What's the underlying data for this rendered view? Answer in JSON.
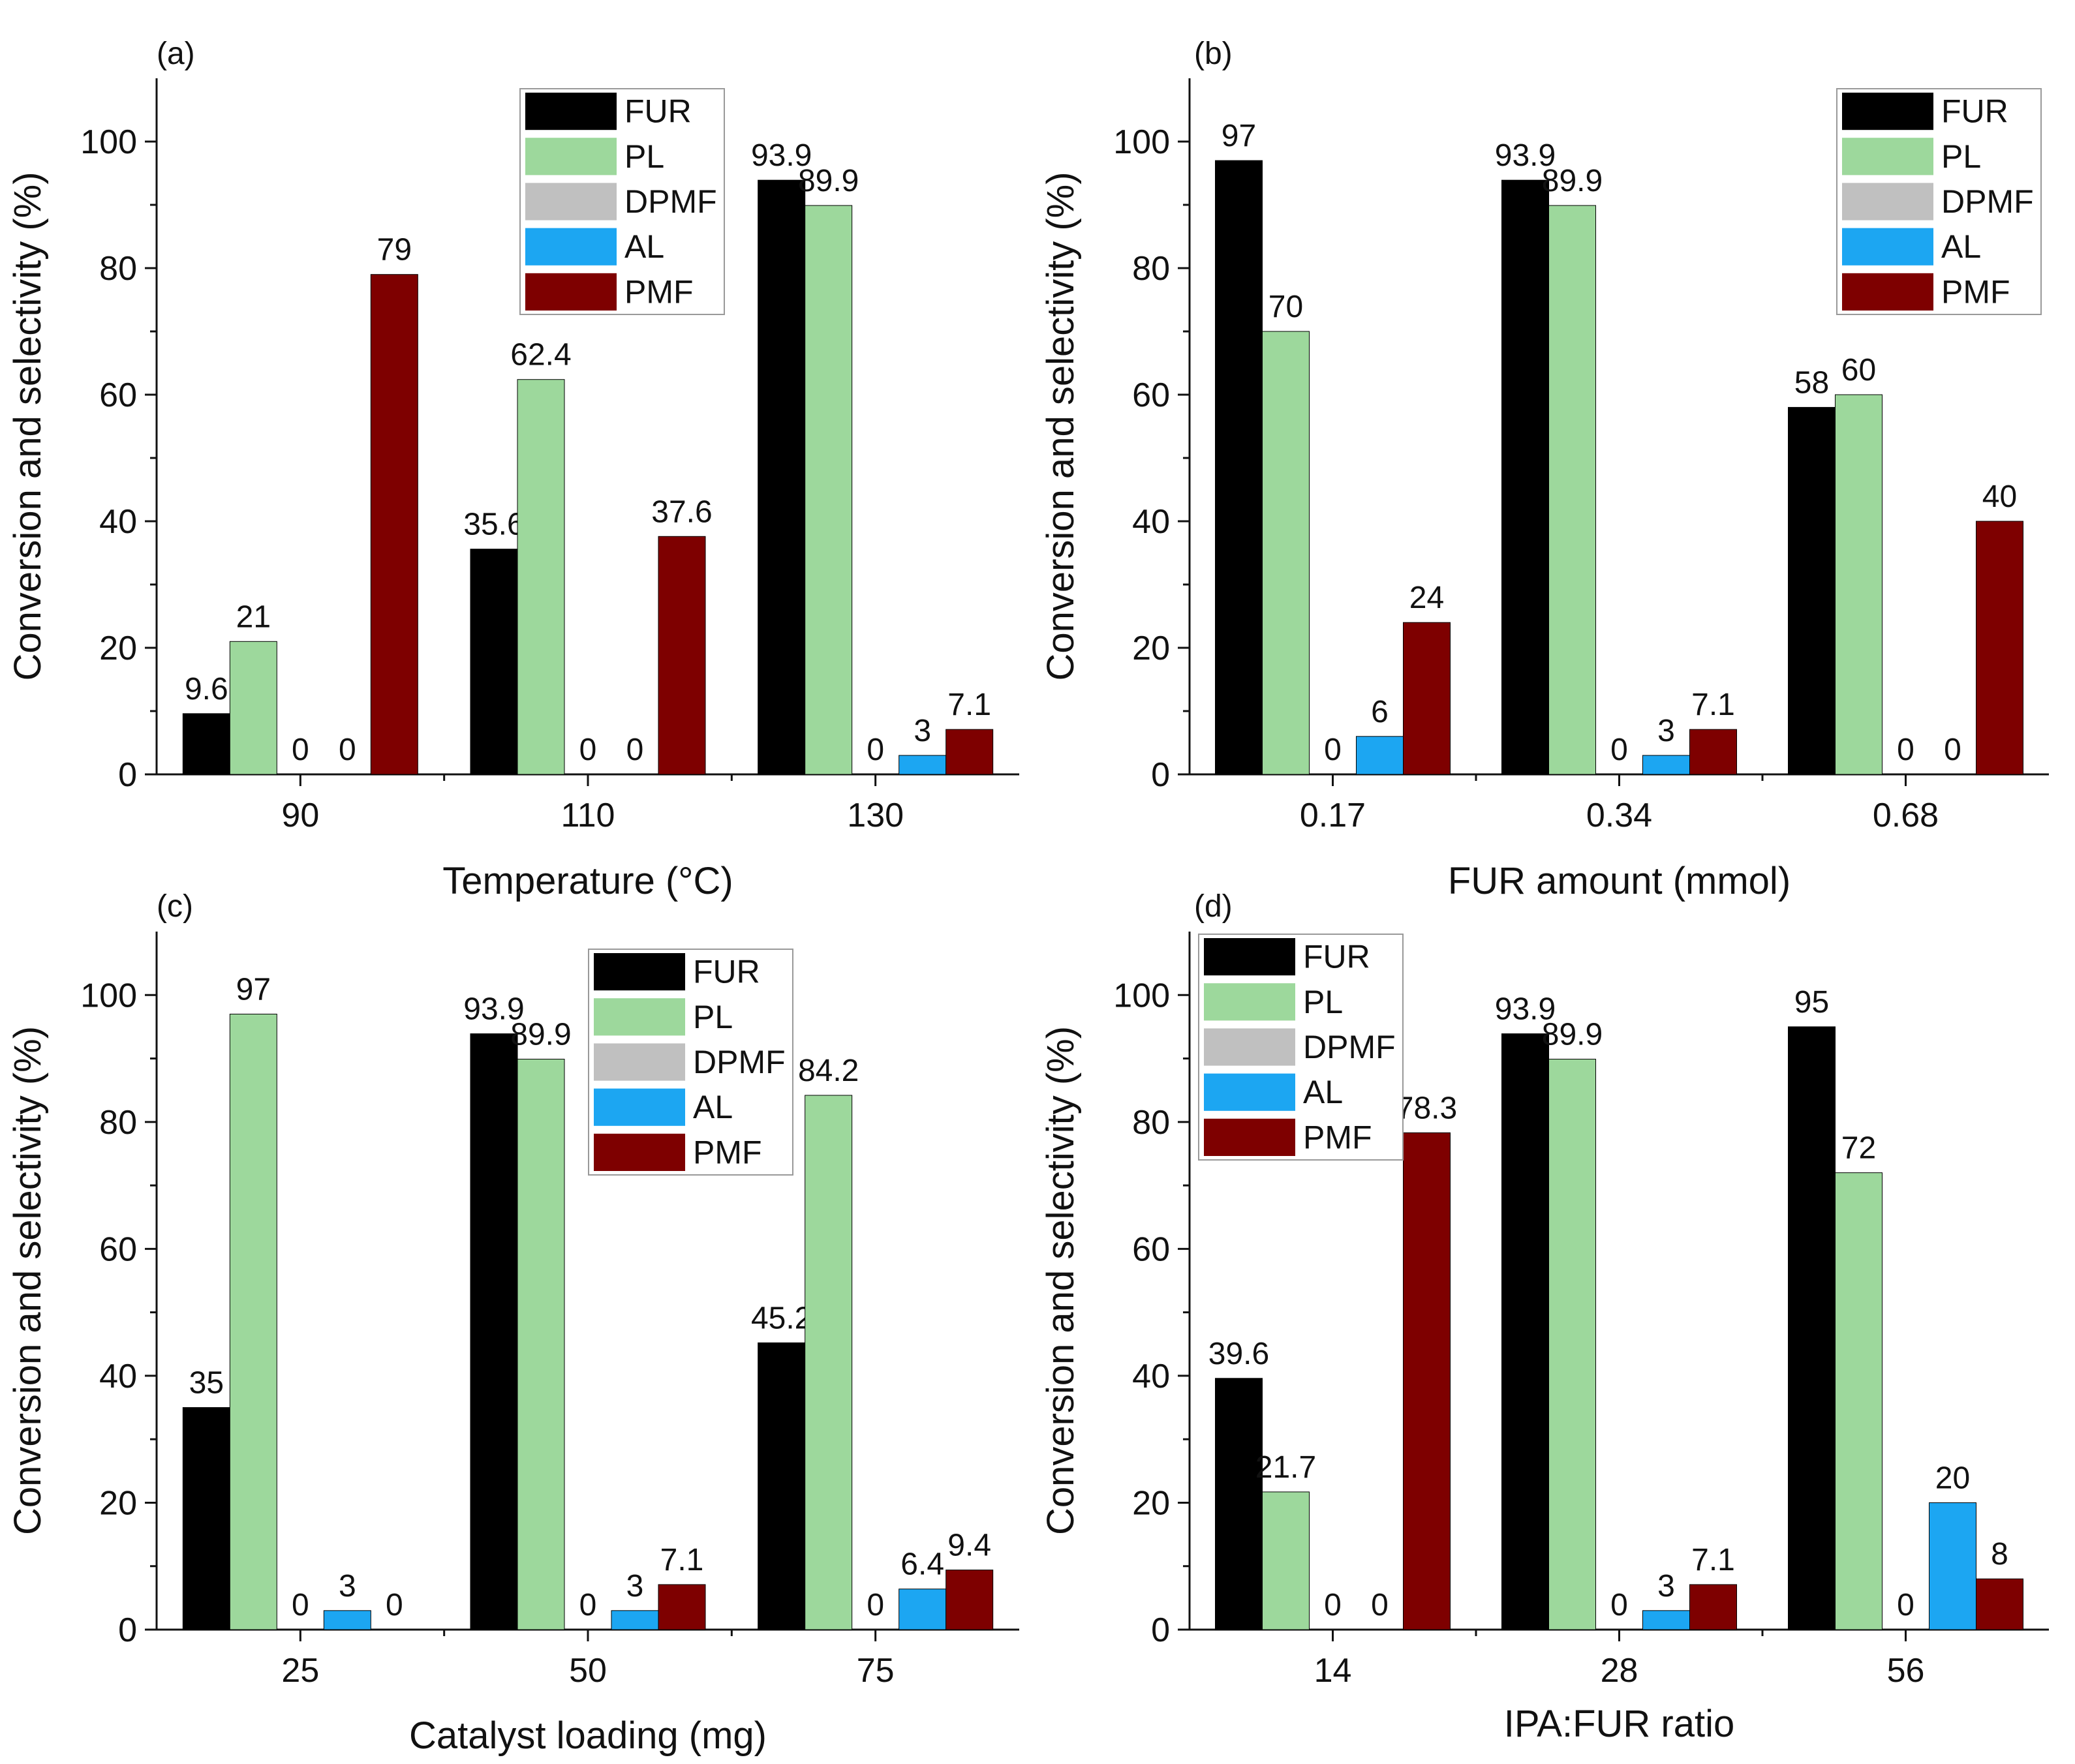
{
  "colors": {
    "FUR": "#000000",
    "PL": "#9dd89c",
    "DPMF": "#c0c0c0",
    "AL": "#1ca6f2",
    "PMF": "#7e0000"
  },
  "chart_data": [
    {
      "type": "bar",
      "panel": "(a)",
      "xlabel": "Temperature (°C)",
      "ylabel": "Conversion and selectivity (%)",
      "ylim": [
        0,
        110
      ],
      "yticks": [
        0,
        20,
        40,
        60,
        80,
        100
      ],
      "categories": [
        "90",
        "110",
        "130"
      ],
      "series": [
        {
          "name": "FUR",
          "values": [
            9.6,
            35.6,
            93.9
          ],
          "labels": [
            "9.6",
            "35.6",
            "93.9"
          ]
        },
        {
          "name": "PL",
          "values": [
            21,
            62.4,
            89.9
          ],
          "labels": [
            "21",
            "62.4",
            "89.9"
          ]
        },
        {
          "name": "DPMF",
          "values": [
            0,
            0,
            0
          ],
          "labels": [
            "0",
            "0",
            "0"
          ]
        },
        {
          "name": "AL",
          "values": [
            0,
            0,
            3
          ],
          "labels": [
            "0",
            "0",
            "3"
          ]
        },
        {
          "name": "PMF",
          "values": [
            79,
            37.6,
            7.1
          ],
          "labels": [
            "79",
            "37.6",
            "7.1"
          ]
        }
      ],
      "label_series": [
        0,
        1,
        2,
        3,
        4
      ],
      "legend": "top-right",
      "grid": false
    },
    {
      "type": "bar",
      "panel": "(b)",
      "xlabel": "FUR amount (mmol)",
      "ylabel": "Conversion and selectivity (%)",
      "ylim": [
        0,
        110
      ],
      "yticks": [
        0,
        20,
        40,
        60,
        80,
        100
      ],
      "categories": [
        "0.17",
        "0.34",
        "0.68"
      ],
      "series": [
        {
          "name": "FUR",
          "values": [
            97,
            93.9,
            58
          ],
          "labels": [
            "97",
            "93.9",
            "58"
          ]
        },
        {
          "name": "PL",
          "values": [
            70,
            89.9,
            60
          ],
          "labels": [
            "70",
            "89.9",
            "60"
          ]
        },
        {
          "name": "DPMF",
          "values": [
            0,
            0,
            0
          ],
          "labels": [
            "0",
            "0",
            "0"
          ]
        },
        {
          "name": "AL",
          "values": [
            6,
            3,
            0
          ],
          "labels": [
            "6",
            "3",
            "0"
          ]
        },
        {
          "name": "PMF",
          "values": [
            24,
            7.1,
            40
          ],
          "labels": [
            "24",
            "7.1",
            "40"
          ]
        }
      ],
      "legend": "top-right",
      "grid": false
    },
    {
      "type": "bar",
      "panel": "(c)",
      "xlabel": "Catalyst loading (mg)",
      "ylabel": "Conversion and selectivity (%)",
      "ylim": [
        0,
        110
      ],
      "yticks": [
        0,
        20,
        40,
        60,
        80,
        100
      ],
      "categories": [
        "25",
        "50",
        "75"
      ],
      "series": [
        {
          "name": "FUR",
          "values": [
            35,
            93.9,
            45.2
          ],
          "labels": [
            "35",
            "93.9",
            "45.2"
          ]
        },
        {
          "name": "PL",
          "values": [
            97,
            89.9,
            84.2
          ],
          "labels": [
            "97",
            "89.9",
            "84.2"
          ]
        },
        {
          "name": "DPMF",
          "values": [
            0,
            0,
            0
          ],
          "labels": [
            "0",
            "0",
            "0"
          ]
        },
        {
          "name": "AL",
          "values": [
            3,
            3,
            6.4
          ],
          "labels": [
            "3",
            "3",
            "6.4"
          ]
        },
        {
          "name": "PMF",
          "values": [
            0,
            7.1,
            9.4
          ],
          "labels": [
            "0",
            "7.1",
            "9.4"
          ]
        }
      ],
      "legend": "top-center",
      "grid": false
    },
    {
      "type": "bar",
      "panel": "(d)",
      "xlabel": "IPA:FUR ratio",
      "ylabel": "Conversion and selectivity (%)",
      "ylim": [
        0,
        110
      ],
      "yticks": [
        0,
        20,
        40,
        60,
        80,
        100
      ],
      "categories": [
        "14",
        "28",
        "56"
      ],
      "series": [
        {
          "name": "FUR",
          "values": [
            39.6,
            93.9,
            95
          ],
          "labels": [
            "39.6",
            "93.9",
            "95"
          ]
        },
        {
          "name": "PL",
          "values": [
            21.7,
            89.9,
            72
          ],
          "labels": [
            "21.7",
            "89.9",
            "72"
          ]
        },
        {
          "name": "DPMF",
          "values": [
            0,
            0,
            0
          ],
          "labels": [
            "0",
            "0",
            "0"
          ]
        },
        {
          "name": "AL",
          "values": [
            0,
            3,
            20
          ],
          "labels": [
            "0",
            "3",
            "20"
          ]
        },
        {
          "name": "PMF",
          "values": [
            78.3,
            7.1,
            8
          ],
          "labels": [
            "78.3",
            "7.1",
            "8"
          ]
        }
      ],
      "legend": "top-left",
      "grid": false
    }
  ]
}
